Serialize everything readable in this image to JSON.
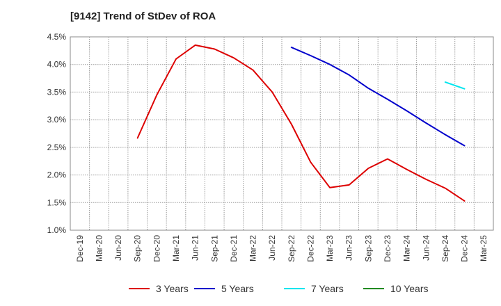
{
  "chart_data": {
    "type": "line",
    "title": "[9142]  Trend of StDev of ROA",
    "xlabel": "",
    "ylabel": "",
    "x_categories": [
      "Dec-19",
      "Mar-20",
      "Jun-20",
      "Sep-20",
      "Dec-20",
      "Mar-21",
      "Jun-21",
      "Sep-21",
      "Dec-21",
      "Mar-22",
      "Jun-22",
      "Sep-22",
      "Dec-22",
      "Mar-23",
      "Jun-23",
      "Sep-23",
      "Dec-23",
      "Mar-24",
      "Jun-24",
      "Sep-24",
      "Dec-24",
      "Mar-25"
    ],
    "y_ticks": [
      "1.0%",
      "1.5%",
      "2.0%",
      "2.5%",
      "3.0%",
      "3.5%",
      "4.0%",
      "4.5%"
    ],
    "ylim": [
      1.0,
      4.5
    ],
    "grid": true,
    "legend_position": "bottom",
    "series": [
      {
        "name": "3 Years",
        "color": "#dd0000",
        "points": [
          {
            "x": "Sep-20",
            "y": 2.67
          },
          {
            "x": "Dec-20",
            "y": 3.45
          },
          {
            "x": "Mar-21",
            "y": 4.1
          },
          {
            "x": "Jun-21",
            "y": 4.35
          },
          {
            "x": "Sep-21",
            "y": 4.28
          },
          {
            "x": "Dec-21",
            "y": 4.12
          },
          {
            "x": "Mar-22",
            "y": 3.9
          },
          {
            "x": "Jun-22",
            "y": 3.5
          },
          {
            "x": "Sep-22",
            "y": 2.92
          },
          {
            "x": "Dec-22",
            "y": 2.23
          },
          {
            "x": "Mar-23",
            "y": 1.77
          },
          {
            "x": "Jun-23",
            "y": 1.82
          },
          {
            "x": "Sep-23",
            "y": 2.12
          },
          {
            "x": "Dec-23",
            "y": 2.29
          },
          {
            "x": "Mar-24",
            "y": 2.1
          },
          {
            "x": "Jun-24",
            "y": 1.92
          },
          {
            "x": "Sep-24",
            "y": 1.76
          },
          {
            "x": "Dec-24",
            "y": 1.53
          }
        ]
      },
      {
        "name": "5 Years",
        "color": "#0000cc",
        "points": [
          {
            "x": "Sep-22",
            "y": 4.31
          },
          {
            "x": "Dec-22",
            "y": 4.16
          },
          {
            "x": "Mar-23",
            "y": 4.0
          },
          {
            "x": "Jun-23",
            "y": 3.81
          },
          {
            "x": "Sep-23",
            "y": 3.57
          },
          {
            "x": "Dec-23",
            "y": 3.37
          },
          {
            "x": "Mar-24",
            "y": 3.16
          },
          {
            "x": "Jun-24",
            "y": 2.94
          },
          {
            "x": "Sep-24",
            "y": 2.73
          },
          {
            "x": "Dec-24",
            "y": 2.53
          }
        ]
      },
      {
        "name": "7 Years",
        "color": "#00e5ee",
        "points": [
          {
            "x": "Sep-24",
            "y": 3.68
          },
          {
            "x": "Dec-24",
            "y": 3.56
          }
        ]
      },
      {
        "name": "10 Years",
        "color": "#228b22",
        "points": []
      }
    ]
  }
}
